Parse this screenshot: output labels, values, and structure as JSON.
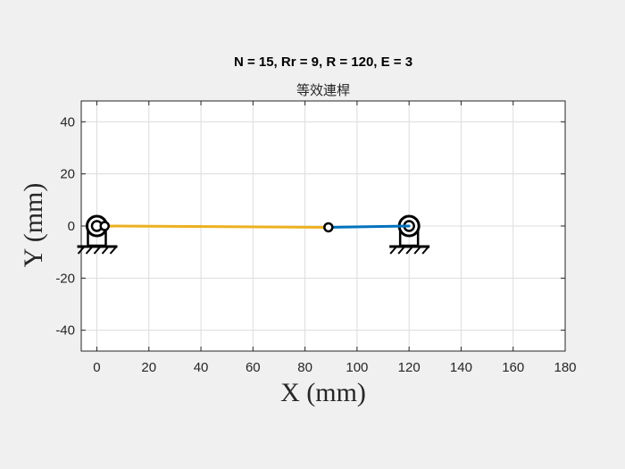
{
  "chart_data": {
    "type": "line",
    "title": "N = 15, Rr = 9, R = 120, E = 3",
    "subtitle": "等效連桿",
    "xlabel": "X (mm)",
    "ylabel": "Y (mm)",
    "xlim": [
      -6,
      180
    ],
    "ylim": [
      -48,
      48
    ],
    "xticks": [
      0,
      20,
      40,
      60,
      80,
      100,
      120,
      140,
      160,
      180
    ],
    "yticks": [
      -40,
      -20,
      0,
      20,
      40
    ],
    "xtick_labels": [
      "0",
      "20",
      "40",
      "60",
      "80",
      "100",
      "120",
      "140",
      "160",
      "180"
    ],
    "ytick_labels": [
      "-40",
      "-20",
      "0",
      "20",
      "40"
    ],
    "grid": true,
    "series": [
      {
        "color": "#EDB120",
        "x": [
          3,
          89
        ],
        "y": [
          0,
          -0.5
        ]
      },
      {
        "color": "#0072BD",
        "x": [
          89,
          120
        ],
        "y": [
          -0.5,
          0
        ]
      }
    ],
    "pivots": [
      {
        "x": 0,
        "y": 0,
        "kind": "fixed"
      },
      {
        "x": 120,
        "y": 0,
        "kind": "fixed"
      }
    ],
    "joints": [
      {
        "x": 3,
        "y": 0
      },
      {
        "x": 89,
        "y": -0.5
      }
    ]
  }
}
